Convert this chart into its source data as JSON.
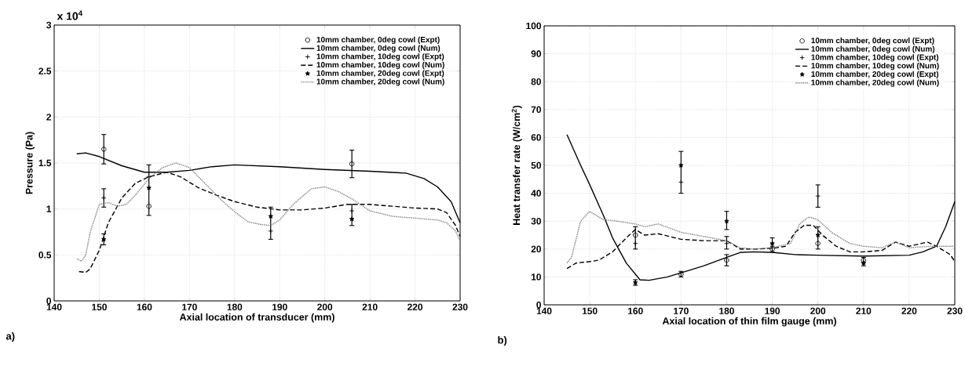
{
  "chart_data": [
    {
      "type": "line",
      "xlabel": "Axial location of transducer (mm)",
      "ylabel": "Pressure (Pa)",
      "xlim": [
        140,
        230
      ],
      "xticks": [
        140,
        150,
        160,
        170,
        180,
        190,
        200,
        210,
        220,
        230
      ],
      "ylim": [
        0,
        3
      ],
      "yticks": [
        0,
        0.5,
        1,
        1.5,
        2,
        2.5,
        3
      ],
      "grid": true,
      "legend": "top right",
      "annotations": [
        "x 10$^{4}$",
        "a)"
      ],
      "series": [
        {
          "name": "10mm chamber, 0deg cowl (Expt)",
          "type": "scatter",
          "marker": "circle",
          "color": "#000000",
          "x": [
            151,
            161,
            206
          ],
          "values": [
            1.65,
            1.03,
            1.49
          ],
          "errors": [
            0.16,
            null,
            0.15
          ]
        },
        {
          "name": "10mm chamber, 0deg cowl (Num)",
          "line_style": "solid",
          "color": "#000000",
          "x": [
            145,
            147,
            150,
            155,
            160,
            165,
            170,
            175,
            180,
            190,
            200,
            210,
            218,
            222,
            225,
            228,
            230
          ],
          "values": [
            1.6,
            1.61,
            1.57,
            1.47,
            1.4,
            1.4,
            1.42,
            1.46,
            1.48,
            1.46,
            1.43,
            1.41,
            1.39,
            1.33,
            1.24,
            1.08,
            0.85
          ]
        },
        {
          "name": "10mm chamber, 10deg cowl (Expt)",
          "type": "scatter",
          "marker": "cross",
          "color": "#000000",
          "x": [
            151,
            161,
            188,
            206
          ],
          "values": [
            1.12,
            1.35,
            0.76,
            0.98
          ],
          "errors": [
            0.1,
            [
              0.93,
              1.48
            ],
            [
              0.67,
              1.02
            ],
            [
              0.82,
              1.05
            ]
          ]
        },
        {
          "name": "10mm chamber, 10deg cowl (Num)",
          "line_style": "dashed",
          "color": "#000000",
          "x": [
            145.5,
            147,
            148,
            150,
            152,
            155,
            158,
            161,
            165,
            168,
            172,
            176,
            180,
            185,
            190,
            195,
            200,
            205,
            210,
            215,
            220,
            225,
            227,
            229,
            230
          ],
          "values": [
            0.32,
            0.31,
            0.35,
            0.55,
            0.85,
            1.12,
            1.28,
            1.35,
            1.4,
            1.35,
            1.23,
            1.15,
            1.08,
            1.02,
            0.99,
            0.99,
            1.01,
            1.05,
            1.05,
            1.03,
            1.01,
            1.0,
            0.96,
            0.82,
            0.7
          ]
        },
        {
          "name": "10mm chamber, 20deg cowl (Expt)",
          "type": "scatter",
          "marker": "star",
          "color": "#000000",
          "x": [
            151,
            161,
            188,
            206
          ],
          "values": [
            0.67,
            1.23,
            0.92,
            0.89
          ],
          "errors": [
            0.06,
            null,
            null,
            null
          ]
        },
        {
          "name": "10mm chamber, 20deg cowl (Num)",
          "line_style": "dotted",
          "color": "#808080",
          "x": [
            145,
            146,
            147,
            148,
            150,
            152,
            154,
            156,
            158,
            161,
            164,
            167,
            170,
            173,
            177,
            180,
            183,
            186,
            188,
            190,
            193,
            197,
            200,
            203,
            206,
            210,
            215,
            220,
            225,
            227,
            229,
            230
          ],
          "values": [
            0.46,
            0.43,
            0.5,
            0.75,
            1.05,
            1.07,
            1.03,
            1.05,
            1.15,
            1.33,
            1.45,
            1.5,
            1.45,
            1.3,
            1.1,
            0.97,
            0.86,
            0.83,
            0.82,
            0.88,
            1.05,
            1.22,
            1.24,
            1.19,
            1.11,
            0.98,
            0.92,
            0.9,
            0.88,
            0.85,
            0.76,
            0.65
          ]
        }
      ]
    },
    {
      "type": "line",
      "xlabel": "Axial location of thin film gauge (mm)",
      "ylabel": "Heat transfer rate (W/cm$^{2}$)",
      "xlim": [
        140,
        230
      ],
      "xticks": [
        140,
        150,
        160,
        170,
        180,
        190,
        200,
        210,
        220,
        230
      ],
      "ylim": [
        0,
        100
      ],
      "yticks": [
        0,
        10,
        20,
        30,
        40,
        50,
        60,
        70,
        80,
        90,
        100
      ],
      "grid": true,
      "legend": "top right",
      "annotations": [
        "b)"
      ],
      "series": [
        {
          "name": "10mm chamber, 0deg cowl (Expt)",
          "type": "scatter",
          "marker": "circle",
          "color": "#000000",
          "x": [
            160,
            170,
            180,
            190,
            200,
            210
          ],
          "values": [
            25,
            11,
            16,
            20,
            22,
            16
          ],
          "errors": [
            [
              20,
              28
            ],
            1,
            2,
            null,
            null,
            [
              14,
              17
            ]
          ]
        },
        {
          "name": "10mm chamber, 0deg cowl (Num)",
          "line_style": "solid",
          "color": "#000000",
          "x": [
            145,
            148,
            150,
            153,
            155,
            158,
            161,
            163,
            167,
            170,
            175,
            180,
            183,
            186,
            190,
            195,
            200,
            210,
            220,
            223,
            226,
            228,
            230
          ],
          "values": [
            61,
            50,
            43,
            32,
            24,
            15,
            9,
            8.8,
            10,
            11.5,
            14,
            17,
            18.8,
            19,
            18.8,
            18,
            17.8,
            17.5,
            17.8,
            19,
            21,
            28,
            37
          ]
        },
        {
          "name": "10mm chamber, 10deg cowl (Expt)",
          "type": "scatter",
          "marker": "cross",
          "color": "#000000",
          "x": [
            160,
            170,
            180,
            190,
            200,
            210
          ],
          "values": [
            22,
            44,
            22,
            21,
            39,
            15
          ],
          "errors": [
            null,
            null,
            [
              20,
              24.5
            ],
            null,
            4,
            null
          ]
        },
        {
          "name": "10mm chamber, 10deg cowl (Num)",
          "line_style": "dashed",
          "color": "#000000",
          "x": [
            145,
            147,
            150,
            152,
            155,
            158,
            160,
            162,
            165,
            170,
            175,
            180,
            183,
            187,
            191,
            193,
            195,
            197,
            199,
            201,
            204,
            207,
            210,
            214,
            217,
            220,
            224,
            226,
            229,
            230
          ],
          "values": [
            13,
            15,
            15.5,
            16,
            19,
            24,
            27,
            25,
            25.5,
            23.5,
            23,
            23,
            20,
            20,
            20.5,
            21,
            26,
            28.5,
            28.5,
            25,
            21,
            19,
            19,
            19.5,
            22.5,
            21,
            22.5,
            21,
            18,
            15.5
          ]
        },
        {
          "name": "10mm chamber, 20deg cowl (Expt)",
          "type": "scatter",
          "marker": "star",
          "color": "#000000",
          "x": [
            160,
            170,
            180,
            190,
            200,
            210
          ],
          "values": [
            8,
            50,
            30,
            22,
            25,
            15
          ],
          "errors": [
            1,
            [
              40,
              55
            ],
            [
              27,
              33.5
            ],
            [
              19,
              24
            ],
            [
              20,
              28
            ],
            null
          ]
        },
        {
          "name": "10mm chamber, 20deg cowl (Num)",
          "line_style": "dotted",
          "color": "#808080",
          "x": [
            145,
            146,
            148,
            150,
            153,
            156,
            160,
            162,
            165,
            170,
            175,
            180,
            183,
            186,
            190,
            194,
            196,
            198,
            200,
            203,
            207,
            210,
            214,
            217,
            220,
            225,
            230
          ],
          "values": [
            15,
            17,
            30,
            33.5,
            30.5,
            30,
            29,
            28,
            29,
            26,
            24.5,
            23,
            20.5,
            20,
            20.5,
            22,
            29,
            31.5,
            30.5,
            26,
            22,
            21,
            20.5,
            22.5,
            20.5,
            21,
            21
          ]
        }
      ]
    }
  ]
}
